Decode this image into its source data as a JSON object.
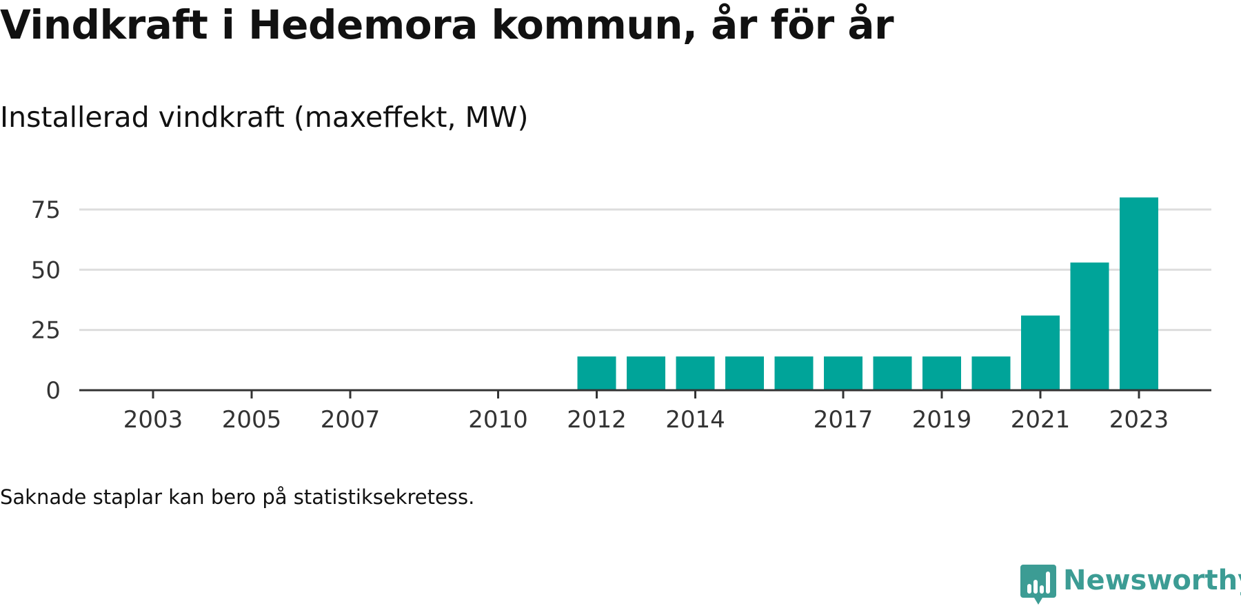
{
  "header": {
    "title": "Vindkraft i Hedemora kommun, år för år",
    "subtitle": "Installerad vindkraft (maxeffekt, MW)"
  },
  "footer": {
    "note": "Saknade staplar kan bero på statistiksekretess.",
    "brand": "Newsworthy",
    "brand_icon": "newsworthy-logo-icon"
  },
  "colors": {
    "bar": "#00a499",
    "grid": "#dddddd",
    "axis": "#333333",
    "text": "#111111",
    "brand": "#3c9c94"
  },
  "chart_data": {
    "type": "bar",
    "categories": [
      2003,
      2004,
      2005,
      2006,
      2007,
      2008,
      2009,
      2010,
      2011,
      2012,
      2013,
      2014,
      2015,
      2016,
      2017,
      2018,
      2019,
      2020,
      2021,
      2022,
      2023
    ],
    "x_tick_labels": [
      "2003",
      "2005",
      "2007",
      "2010",
      "2012",
      "2014",
      "2017",
      "2019",
      "2021",
      "2023"
    ],
    "values": [
      null,
      null,
      null,
      null,
      null,
      null,
      null,
      null,
      null,
      14,
      14,
      14,
      14,
      14,
      14,
      14,
      14,
      14,
      31,
      53,
      80
    ],
    "title": "Vindkraft i Hedemora kommun, år för år",
    "subtitle": "Installerad vindkraft (maxeffekt, MW)",
    "xlabel": "",
    "ylabel": "",
    "ylim": [
      0,
      85
    ],
    "yticks": [
      0,
      25,
      50,
      75
    ],
    "grid": true,
    "legend": "none"
  }
}
